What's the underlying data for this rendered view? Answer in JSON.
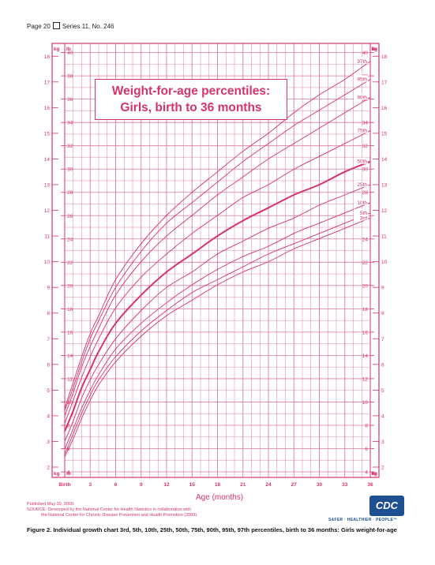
{
  "header": {
    "page": "Page 20",
    "series": "Series 11, No. 246"
  },
  "title": {
    "line1": "Weight-for-age percentiles:",
    "line2": "Girls, birth to 36 months"
  },
  "published": "Published May 30, 2000.",
  "source_line1": "SOURCE: Developed by the National Center for Health Statistics in collaboration with",
  "source_line2": "the National Center for Chronic Disease Prevention and Health Promotion (2000).",
  "logo": {
    "text": "CDC",
    "tagline": "SAFER · HEALTHIER · PEOPLE™"
  },
  "caption": "Figure 2. Individual growth chart 3rd, 5th, 10th, 25th, 50th, 75th, 90th, 95th, 97th percentiles, birth to 36 months: Girls weight-for-age",
  "colors": {
    "accent": "#d6336c",
    "grid": "#e07aa0",
    "logo": "#1d4f91"
  },
  "chart_data": {
    "type": "line",
    "title": "Weight-for-age percentiles: Girls, birth to 36 months",
    "xlabel": "Age (months)",
    "ylabel_left": "kg",
    "ylabel_right": "lb",
    "xlim": [
      0,
      36
    ],
    "ylim_kg": [
      1.6,
      18.5
    ],
    "x_ticks": [
      "Birth",
      "3",
      "6",
      "9",
      "12",
      "15",
      "18",
      "21",
      "24",
      "27",
      "30",
      "33",
      "36"
    ],
    "x_tick_values": [
      0,
      3,
      6,
      9,
      12,
      15,
      18,
      21,
      24,
      27,
      30,
      33,
      36
    ],
    "kg_ticks": [
      2,
      3,
      4,
      5,
      6,
      7,
      8,
      9,
      10,
      11,
      12,
      13,
      14,
      15,
      16,
      17,
      18
    ],
    "lb_ticks": [
      4,
      6,
      8,
      10,
      12,
      14,
      16,
      18,
      20,
      22,
      24,
      26,
      28,
      30,
      32,
      34,
      36,
      38,
      40
    ],
    "grid": true,
    "x": [
      0,
      1,
      2,
      3,
      4,
      6,
      9,
      12,
      15,
      18,
      21,
      24,
      27,
      30,
      33,
      36
    ],
    "series": [
      {
        "name": "3rd",
        "values": [
          2.4,
          3.1,
          3.9,
          4.6,
          5.2,
          6.1,
          7.1,
          7.9,
          8.5,
          9.1,
          9.6,
          10.0,
          10.5,
          10.9,
          11.3,
          11.7
        ]
      },
      {
        "name": "5th",
        "values": [
          2.5,
          3.3,
          4.1,
          4.8,
          5.4,
          6.3,
          7.3,
          8.1,
          8.8,
          9.3,
          9.8,
          10.3,
          10.7,
          11.1,
          11.5,
          11.9
        ]
      },
      {
        "name": "10th",
        "values": [
          2.7,
          3.5,
          4.3,
          5.0,
          5.6,
          6.6,
          7.6,
          8.4,
          9.1,
          9.7,
          10.2,
          10.6,
          11.1,
          11.5,
          11.9,
          12.3
        ]
      },
      {
        "name": "25th",
        "values": [
          3.0,
          3.8,
          4.7,
          5.4,
          6.0,
          7.0,
          8.1,
          9.0,
          9.6,
          10.3,
          10.8,
          11.3,
          11.7,
          12.2,
          12.6,
          13.0
        ]
      },
      {
        "name": "50th",
        "values": [
          3.4,
          4.2,
          5.1,
          5.8,
          6.5,
          7.6,
          8.7,
          9.6,
          10.3,
          11.0,
          11.6,
          12.1,
          12.6,
          13.0,
          13.5,
          13.9
        ]
      },
      {
        "name": "75th",
        "values": [
          3.7,
          4.6,
          5.5,
          6.3,
          7.0,
          8.2,
          9.4,
          10.3,
          11.1,
          11.8,
          12.5,
          13.0,
          13.6,
          14.1,
          14.6,
          15.1
        ]
      },
      {
        "name": "90th",
        "values": [
          4.0,
          4.9,
          5.9,
          6.7,
          7.4,
          8.7,
          10.0,
          11.0,
          11.8,
          12.6,
          13.3,
          14.0,
          14.6,
          15.2,
          15.8,
          16.4
        ]
      },
      {
        "name": "95th",
        "values": [
          4.2,
          5.1,
          6.1,
          7.0,
          7.7,
          9.0,
          10.4,
          11.5,
          12.3,
          13.1,
          13.9,
          14.6,
          15.3,
          15.9,
          16.5,
          17.1
        ]
      },
      {
        "name": "97th",
        "values": [
          4.3,
          5.3,
          6.3,
          7.2,
          7.9,
          9.3,
          10.7,
          11.8,
          12.7,
          13.5,
          14.3,
          15.0,
          15.8,
          16.5,
          17.1,
          17.8
        ]
      }
    ]
  }
}
